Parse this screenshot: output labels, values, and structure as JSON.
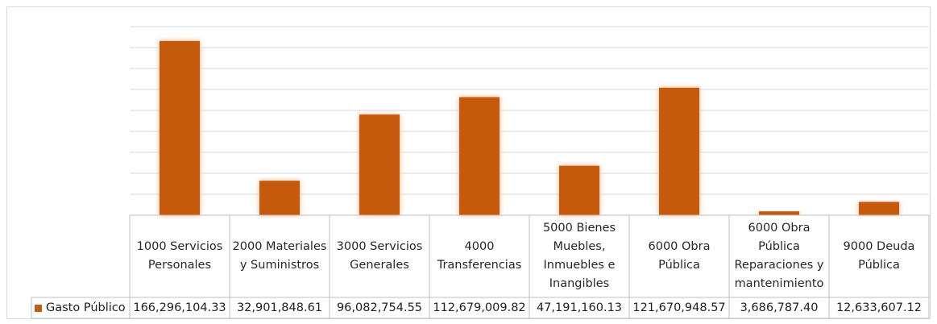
{
  "chart_data": {
    "type": "bar",
    "categories": [
      "1000 Servicios Personales",
      "2000 Materiales y Suministros",
      "3000 Servicios Generales",
      "4000 Transferencias",
      "5000 Bienes Muebles, Inmuebles e Inangibles",
      "6000 Obra Pública",
      "6000 Obra Pública Reparaciones y mantenimiento",
      "9000 Deuda Pública"
    ],
    "category_lines": [
      [
        "1000 Servicios",
        "Personales"
      ],
      [
        "2000 Materiales",
        "y Suministros"
      ],
      [
        "3000 Servicios",
        "Generales"
      ],
      [
        "4000",
        "Transferencias"
      ],
      [
        "5000 Bienes",
        "Muebles,",
        "Inmuebles e",
        "Inangibles"
      ],
      [
        "6000 Obra",
        "Pública"
      ],
      [
        "6000 Obra",
        "Pública",
        "Reparaciones y",
        "mantenimiento"
      ],
      [
        "9000 Deuda",
        "Pública"
      ]
    ],
    "series": [
      {
        "name": "Gasto Público",
        "values": [
          166296104.33,
          32901848.61,
          96082754.55,
          112679009.82,
          47191160.13,
          121670948.57,
          3686787.4,
          12633607.12
        ],
        "value_labels": [
          "166,296,104.33",
          "32,901,848.61",
          "96,082,754.55",
          "112,679,009.82",
          "47,191,160.13",
          "121,670,948.57",
          "3,686,787.40",
          "12,633,607.12"
        ]
      }
    ],
    "ylim": [
      0,
      180000000
    ],
    "grid": true,
    "legend": "data-table",
    "title": "",
    "xlabel": "",
    "ylabel": ""
  },
  "colors": {
    "bar": "#c55a11",
    "glow": "#f4b183",
    "grid": "#d9d9d9",
    "table_border": "#bfbfbf"
  }
}
